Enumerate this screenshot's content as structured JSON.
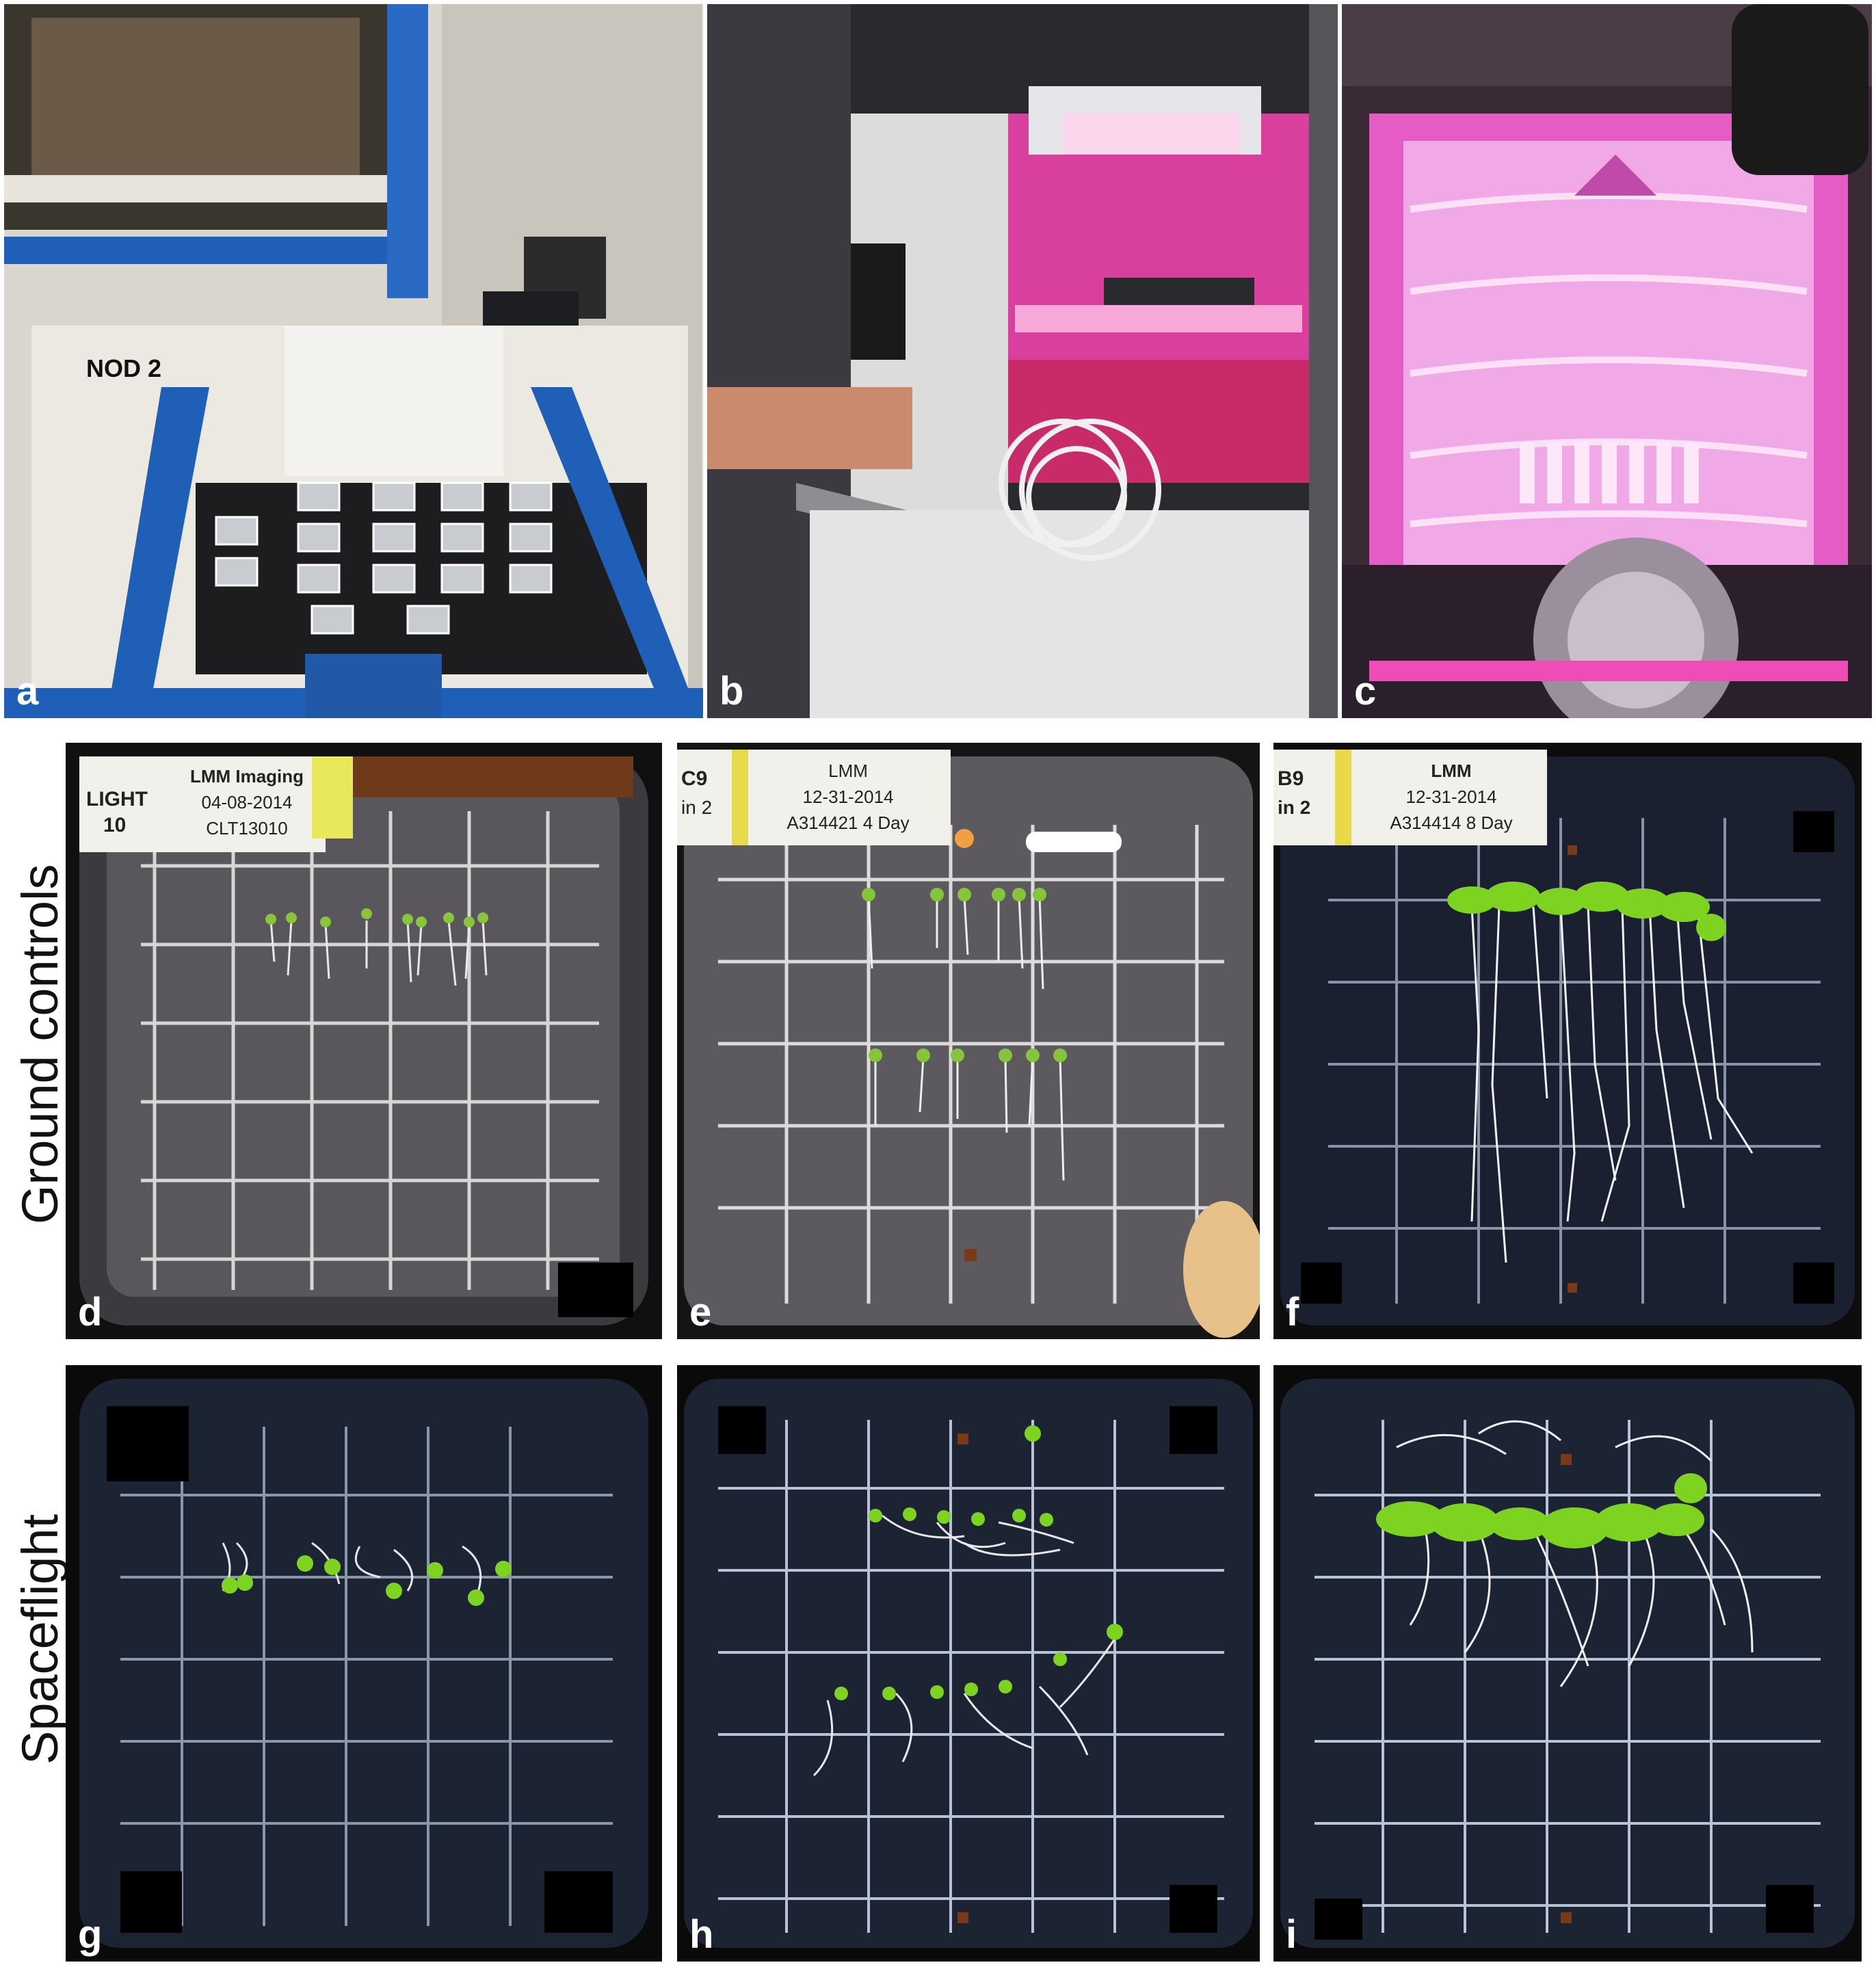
{
  "panels": {
    "a": {
      "label": "a",
      "module_sign": "NOD 2"
    },
    "b": {
      "label": "b"
    },
    "c": {
      "label": "c"
    },
    "d": {
      "label": "d",
      "tag_left": [
        "LIGHT",
        "10"
      ],
      "tag_lines": [
        "LMM Imaging",
        "04-08-2014",
        "CLT13010"
      ]
    },
    "e": {
      "label": "e",
      "tag_left": [
        "C9",
        "in 2"
      ],
      "tag_lines": [
        "LMM",
        "12-31-2014",
        "A314421 4 Day"
      ]
    },
    "f": {
      "label": "f",
      "tag_left": [
        "B9",
        "in 2"
      ],
      "tag_lines": [
        "LMM",
        "12-31-2014",
        "A314414 8 Day"
      ]
    },
    "g": {
      "label": "g"
    },
    "h": {
      "label": "h"
    },
    "i": {
      "label": "i"
    }
  },
  "row_labels": {
    "ground": "Ground controls",
    "spaceflight": "Spaceflight"
  },
  "colors": {
    "iss_blue": "#1f5fb8",
    "led_magenta": "#e0309a",
    "plate_dark": "#1c2333",
    "seedling_green": "#7ed321"
  }
}
